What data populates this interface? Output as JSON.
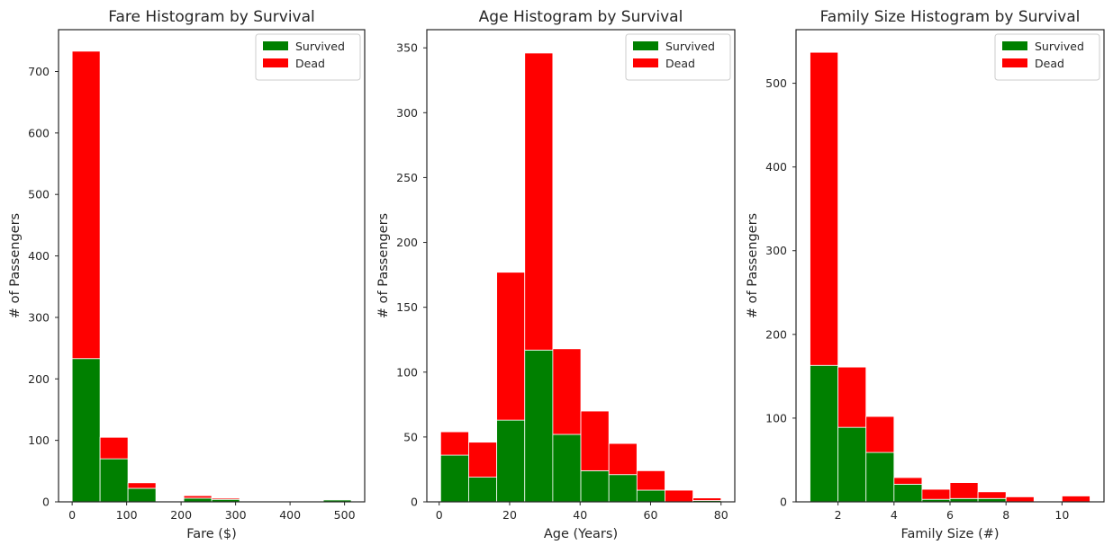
{
  "colors": {
    "survived": "#008000",
    "dead": "#ff0000",
    "frame": "#262626",
    "text": "#262626"
  },
  "chart_data": [
    {
      "type": "bar",
      "subtype": "stacked-histogram",
      "title": "Fare Histogram by Survival",
      "xlabel": "Fare ($)",
      "ylabel": "# of Passengers",
      "xlim": [
        -25,
        537
      ],
      "ylim": [
        0,
        768
      ],
      "xticks": [
        0,
        100,
        200,
        300,
        400,
        500
      ],
      "yticks": [
        0,
        100,
        200,
        300,
        400,
        500,
        600,
        700
      ],
      "bin_edges": [
        0,
        51.23,
        102.47,
        153.7,
        204.93,
        256.16,
        307.4,
        358.63,
        409.86,
        461.1,
        512.33
      ],
      "series": [
        {
          "name": "Survived",
          "color": "#008000",
          "values": [
            233,
            70,
            22,
            0,
            6,
            4,
            0,
            0,
            0,
            3
          ]
        },
        {
          "name": "Dead",
          "color": "#ff0000",
          "values": [
            500,
            35,
            9,
            0,
            4,
            2,
            0,
            0,
            0,
            0
          ]
        }
      ],
      "legend_position": "top-right",
      "grid": false
    },
    {
      "type": "bar",
      "subtype": "stacked-histogram",
      "title": "Age Histogram by Survival",
      "xlabel": "Age (Years)",
      "ylabel": "# of Passengers",
      "xlim": [
        -3.5,
        83.9
      ],
      "ylim": [
        0,
        364
      ],
      "xticks": [
        0,
        20,
        40,
        60,
        80
      ],
      "yticks": [
        0,
        50,
        100,
        150,
        200,
        250,
        300,
        350
      ],
      "bin_edges": [
        0.42,
        8.38,
        16.34,
        24.29,
        32.25,
        40.21,
        48.17,
        56.13,
        64.08,
        72.04,
        80.0
      ],
      "series": [
        {
          "name": "Survived",
          "color": "#008000",
          "values": [
            36,
            19,
            63,
            117,
            52,
            24,
            21,
            9,
            0,
            1
          ]
        },
        {
          "name": "Dead",
          "color": "#ff0000",
          "values": [
            18,
            27,
            114,
            229,
            66,
            46,
            24,
            15,
            9,
            2
          ]
        }
      ],
      "legend_position": "top-right",
      "grid": false
    },
    {
      "type": "bar",
      "subtype": "stacked-histogram",
      "title": "Family Size Histogram by Survival",
      "xlabel": "Family Size (#)",
      "ylabel": "# of Passengers",
      "xlim": [
        0.5,
        11.5
      ],
      "ylim": [
        0,
        564
      ],
      "xticks": [
        2,
        4,
        6,
        8,
        10
      ],
      "yticks": [
        0,
        100,
        200,
        300,
        400,
        500
      ],
      "bin_edges": [
        1,
        2,
        3,
        4,
        5,
        6,
        7,
        8,
        9,
        10,
        11
      ],
      "series": [
        {
          "name": "Survived",
          "color": "#008000",
          "values": [
            163,
            89,
            59,
            21,
            3,
            4,
            4,
            0,
            0,
            0
          ]
        },
        {
          "name": "Dead",
          "color": "#ff0000",
          "values": [
            374,
            72,
            43,
            8,
            12,
            19,
            8,
            6,
            0,
            7
          ]
        }
      ],
      "legend_position": "top-right",
      "grid": false
    }
  ]
}
